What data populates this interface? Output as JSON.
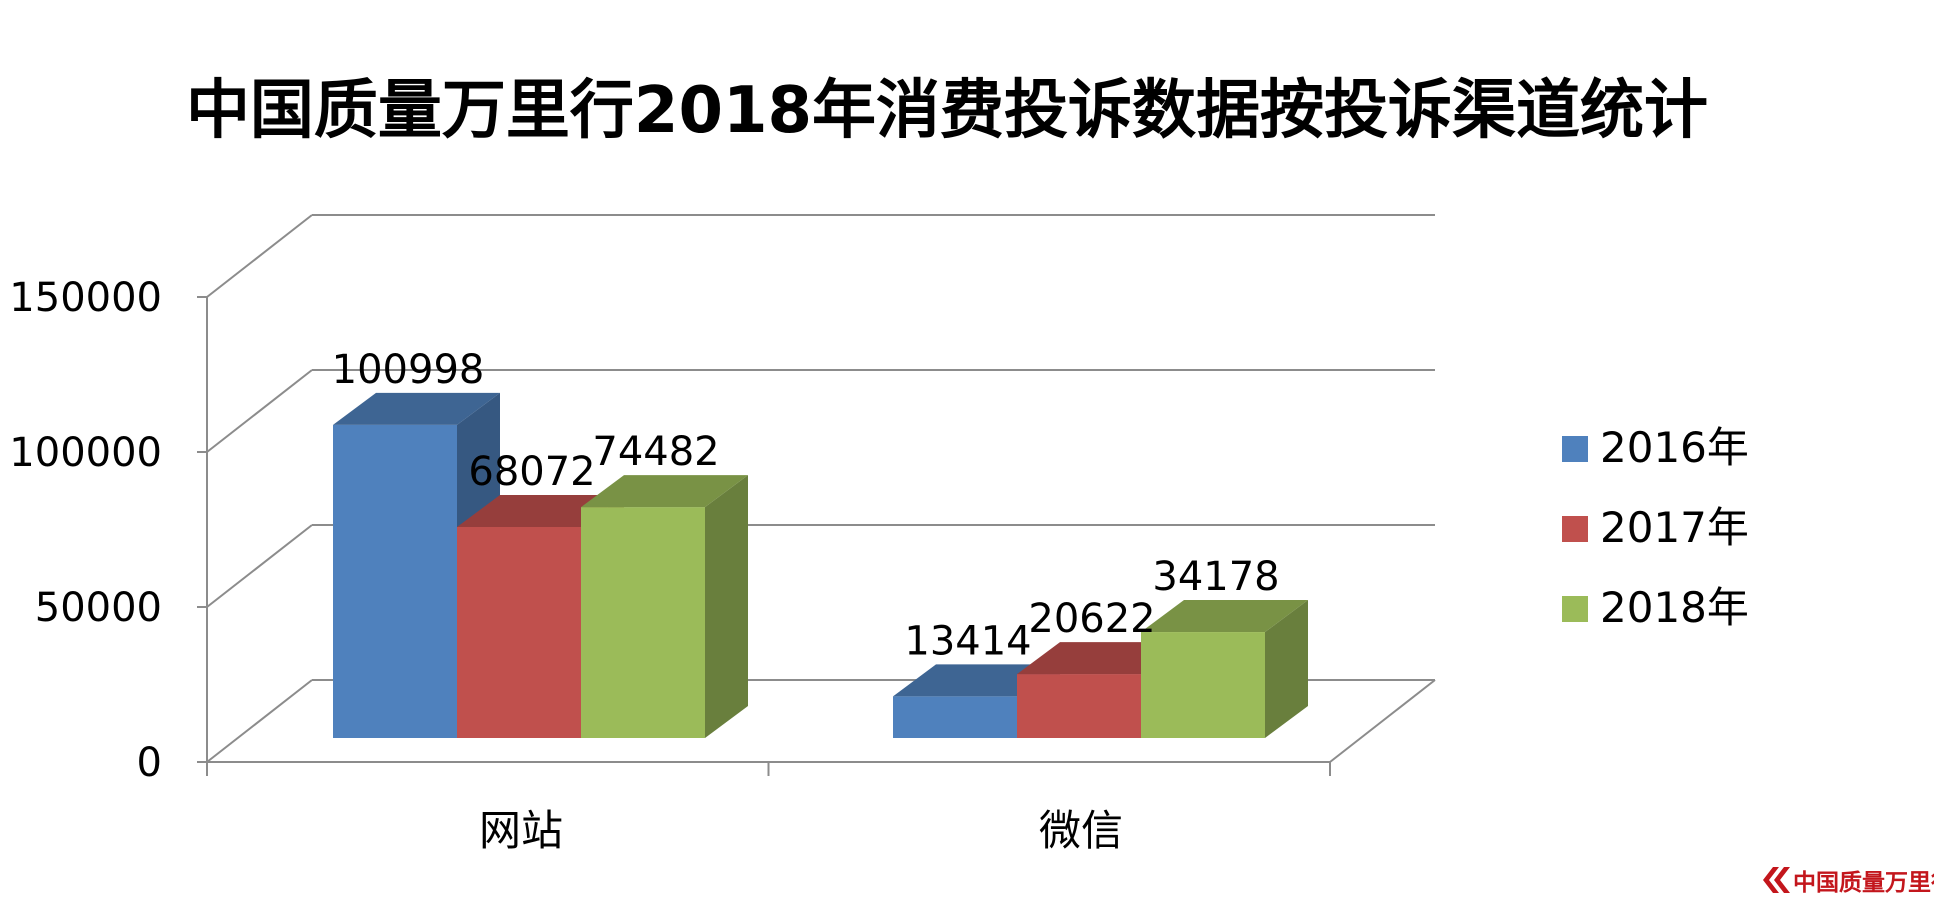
{
  "chart_data": {
    "type": "bar",
    "title": "中国质量万里行2018年消费投诉数据按投诉渠道统计",
    "categories": [
      "网站",
      "微信"
    ],
    "series": [
      {
        "name": "2016年",
        "values": [
          100998,
          13414
        ],
        "color": "#4f81bd"
      },
      {
        "name": "2017年",
        "values": [
          68072,
          20622
        ],
        "color": "#c0504d"
      },
      {
        "name": "2018年",
        "values": [
          74482,
          34178
        ],
        "color": "#9bbb59"
      }
    ],
    "ylim": [
      0,
      150000
    ],
    "yticks": [
      0,
      50000,
      100000,
      150000
    ],
    "grid": true,
    "legend": "right",
    "style": "3d-clustered-column"
  },
  "watermark": {
    "text": "中国质量万里行",
    "color": "#c3161c"
  }
}
